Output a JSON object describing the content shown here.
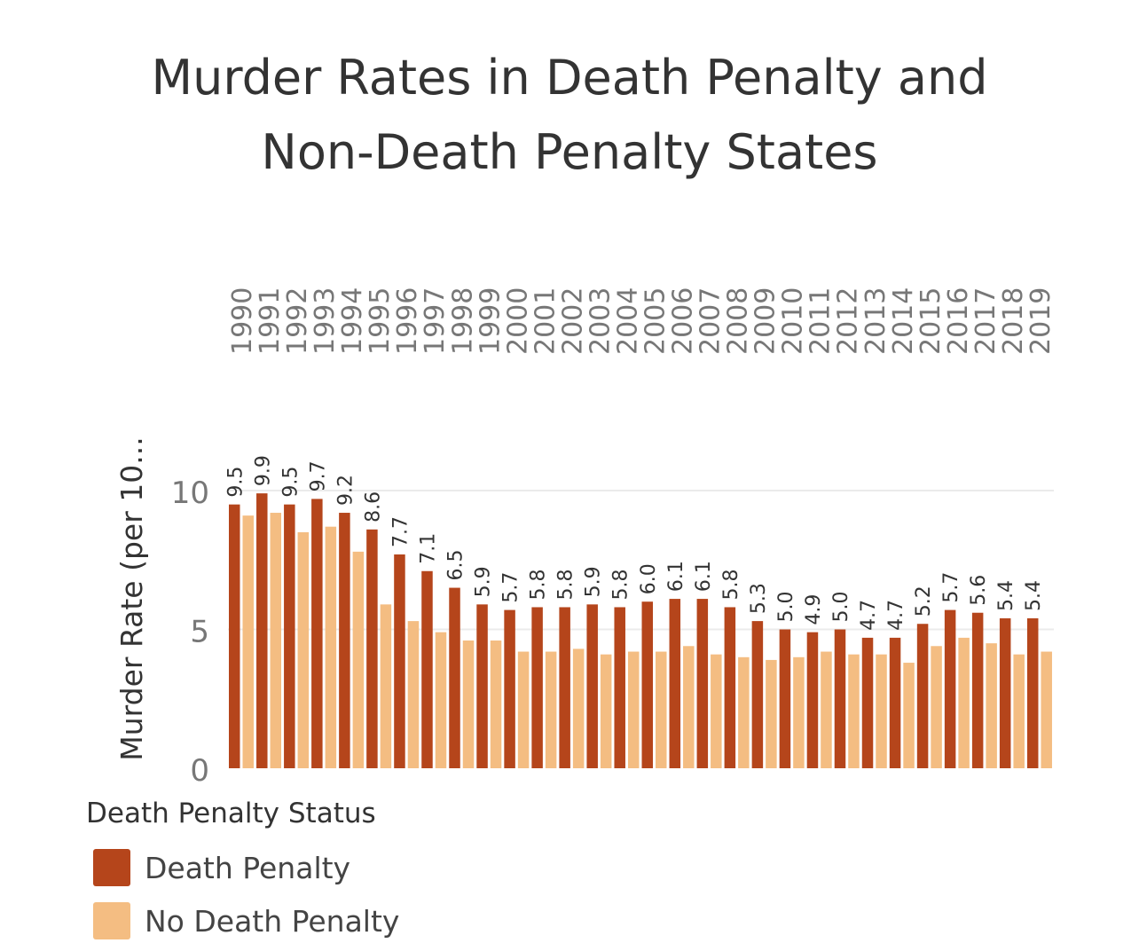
{
  "chart_data": {
    "type": "bar",
    "title_lines": [
      "Murder Rates in Death Penalty and",
      "Non-Death Penalty States"
    ],
    "ylabel": "Murder Rate (per 10...",
    "xlabel": "",
    "ylim": [
      0,
      11
    ],
    "yticks": [
      "0",
      "5",
      "10"
    ],
    "ytick_values": [
      0,
      5,
      10
    ],
    "grid": true,
    "categories": [
      "1990",
      "1991",
      "1992",
      "1993",
      "1994",
      "1995",
      "1996",
      "1997",
      "1998",
      "1999",
      "2000",
      "2001",
      "2002",
      "2003",
      "2004",
      "2005",
      "2006",
      "2007",
      "2008",
      "2009",
      "2010",
      "2011",
      "2012",
      "2013",
      "2014",
      "2015",
      "2016",
      "2017",
      "2018",
      "2019"
    ],
    "series": [
      {
        "name": "Death Penalty",
        "color": "#b5451b",
        "values": [
          9.5,
          9.9,
          9.5,
          9.7,
          9.2,
          8.6,
          7.7,
          7.1,
          6.5,
          5.9,
          5.7,
          5.8,
          5.8,
          5.9,
          5.8,
          6.0,
          6.1,
          6.1,
          5.8,
          5.3,
          5.0,
          4.9,
          5.0,
          4.7,
          4.7,
          5.2,
          5.7,
          5.6,
          5.4,
          5.4
        ],
        "labels": [
          "9.5",
          "9.9",
          "9.5",
          "9.7",
          "9.2",
          "8.6",
          "7.7",
          "7.1",
          "6.5",
          "5.9",
          "5.7",
          "5.8",
          "5.8",
          "5.9",
          "5.8",
          "6.0",
          "6.1",
          "6.1",
          "5.8",
          "5.3",
          "5.0",
          "4.9",
          "5.0",
          "4.7",
          "4.7",
          "5.2",
          "5.7",
          "5.6",
          "5.4",
          "5.4"
        ]
      },
      {
        "name": "No Death Penalty",
        "color": "#f4bd82",
        "values": [
          9.1,
          9.2,
          8.5,
          8.7,
          7.8,
          5.9,
          5.3,
          4.9,
          4.6,
          4.6,
          4.2,
          4.2,
          4.3,
          4.1,
          4.2,
          4.2,
          4.4,
          4.1,
          4.0,
          3.9,
          4.0,
          4.2,
          4.1,
          4.1,
          3.8,
          4.4,
          4.7,
          4.5,
          4.1,
          4.2
        ]
      }
    ],
    "legend": {
      "title": "Death Penalty Status",
      "position": "bottom-left",
      "entries": [
        "Death Penalty",
        "No Death Penalty"
      ]
    }
  }
}
